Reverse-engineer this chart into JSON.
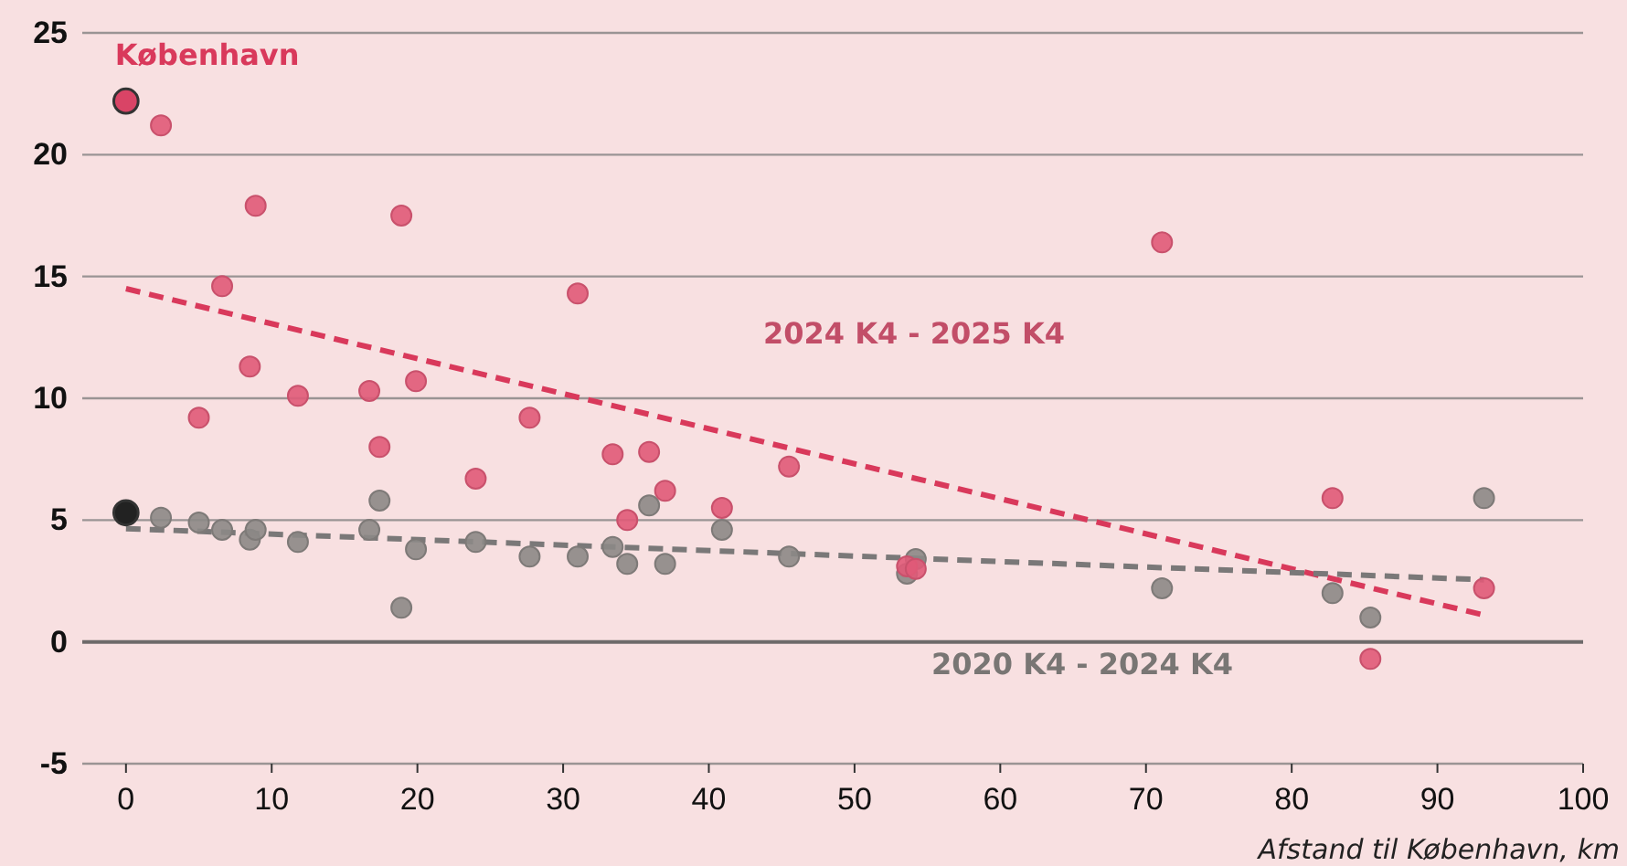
{
  "chart_data": {
    "type": "scatter",
    "xlabel": "Afstand til København, km",
    "xlim": [
      -3,
      100
    ],
    "xticks": [
      0,
      10,
      20,
      30,
      40,
      50,
      60,
      70,
      80,
      90,
      100
    ],
    "ylim": [
      -5,
      25
    ],
    "yticks": [
      -5,
      0,
      5,
      10,
      15,
      20,
      25
    ],
    "grid": "y",
    "legend": false,
    "annotations": [
      {
        "text": "København",
        "x": 0,
        "y": 22.2
      }
    ],
    "series": [
      {
        "name": "2024 K4 - 2025 K4",
        "marker": "circle",
        "color": "#e05a78",
        "x": [
          2.4,
          5.0,
          6.6,
          8.5,
          8.9,
          11.8,
          16.7,
          17.4,
          18.9,
          19.9,
          24.0,
          27.7,
          31.0,
          33.4,
          34.4,
          35.9,
          37.0,
          40.9,
          45.5,
          53.6,
          54.2,
          71.1,
          82.8,
          85.4,
          93.2
        ],
        "values": [
          21.2,
          9.2,
          14.6,
          11.3,
          17.9,
          10.1,
          10.3,
          8.0,
          17.5,
          10.7,
          6.7,
          9.2,
          14.3,
          7.7,
          5.0,
          7.8,
          6.2,
          5.5,
          7.2,
          3.1,
          3.0,
          16.4,
          5.9,
          -0.7,
          2.2
        ]
      },
      {
        "name": "2020 K4 - 2024 K4",
        "marker": "circle",
        "color": "#8c8886",
        "x": [
          2.4,
          5.0,
          6.6,
          8.5,
          8.9,
          11.8,
          16.7,
          17.4,
          18.9,
          19.9,
          24.0,
          27.7,
          31.0,
          33.4,
          34.4,
          35.9,
          37.0,
          40.9,
          45.5,
          53.6,
          54.2,
          71.1,
          82.8,
          85.4,
          93.2
        ],
        "values": [
          5.1,
          4.9,
          4.6,
          4.2,
          4.6,
          4.1,
          4.6,
          5.8,
          1.4,
          3.8,
          4.1,
          3.5,
          3.5,
          3.9,
          3.2,
          5.6,
          3.2,
          4.6,
          3.5,
          2.8,
          3.4,
          2.2,
          2.0,
          1.0,
          5.9
        ]
      },
      {
        "type": "line",
        "marker": "none",
        "color": "#d9395b",
        "line_style": "dashed",
        "x": [
          0,
          93.2
        ],
        "values": [
          14.5,
          1.1
        ]
      },
      {
        "type": "line",
        "marker": "none",
        "color": "#7a7878",
        "line_style": "dashed",
        "x": [
          0,
          93.2
        ],
        "values": [
          4.65,
          2.55
        ]
      },
      {
        "marker": "circle",
        "colors": [
          "#d94466",
          "#222222"
        ],
        "x": [
          0,
          0
        ],
        "values": [
          22.2,
          5.3
        ]
      }
    ]
  }
}
